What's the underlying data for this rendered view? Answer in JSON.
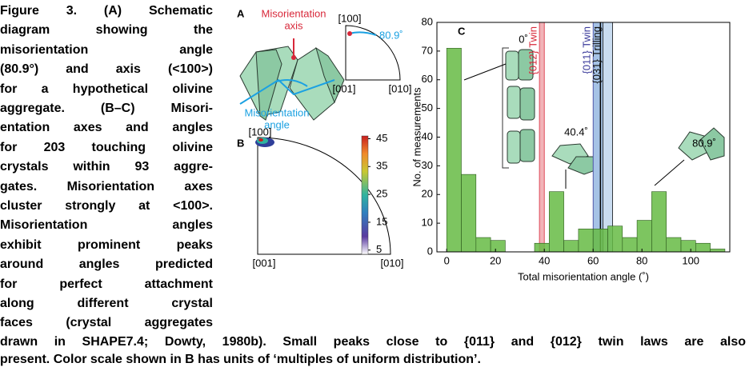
{
  "caption": {
    "side_lines": [
      "Figure 3. (A) Schematic",
      "diagram showing the",
      "misorientation angle",
      "(80.9°) and axis (<100>)",
      "for a hypothetical olivine",
      "aggregate. (B–C) Misori-",
      "entation axes and angles",
      "for 203 touching olivine",
      "crystals within 93 aggre-",
      "gates. Misorientation axes",
      "cluster strongly at <100>.",
      "Misorientation angles",
      "exhibit prominent peaks",
      "around angles predicted",
      "for perfect attachment",
      "along different crystal",
      "faces (crystal aggregates"
    ],
    "bottom_lines": [
      "drawn in SHAPE7.4; Dowty, 1980b). Small peaks close to {011} and {012} twin laws are also",
      "present. Color scale shown in B has units of ‘multiples of uniform distribution’."
    ]
  },
  "panel_a": {
    "label": "A",
    "axis_label": [
      "Misorientation",
      "axis"
    ],
    "angle_label": [
      "Misorientation",
      "angle"
    ],
    "pole_top": "[100]",
    "pole_left": "[001]",
    "pole_right": "[010]",
    "angle": "80.9˚"
  },
  "panel_b": {
    "label": "B",
    "pole_top": "[100]",
    "pole_left": "[001]",
    "pole_right": "[010]",
    "colorbar": {
      "lim": [
        3.5,
        46
      ],
      "ticks": [
        45,
        35,
        25,
        15,
        5
      ]
    }
  },
  "chart_data": {
    "type": "histogram",
    "label": "C",
    "x_label": "Total misorientation angle (˚)",
    "y_label": "No. of measurements",
    "bins": [
      0,
      6,
      12,
      18,
      24,
      30,
      36,
      42,
      48,
      54,
      60,
      66,
      72,
      78,
      84,
      90,
      96,
      102,
      108,
      114
    ],
    "values": [
      71,
      27,
      5,
      4,
      0,
      0,
      3,
      21,
      4,
      8,
      8,
      9,
      5,
      11,
      21,
      5,
      4,
      3,
      1
    ],
    "color": "#66bb44",
    "xlim": [
      -4,
      116
    ],
    "xticks": [
      0,
      20,
      40,
      60,
      80,
      100
    ],
    "ylim": [
      0,
      80
    ],
    "yticks": [
      0,
      10,
      20,
      30,
      40,
      50,
      60,
      70,
      80
    ],
    "bands": [
      {
        "label": "{012} Twin",
        "range": [
          38,
          40
        ],
        "color": "#f2b3b8",
        "text_color": "#d8283a"
      },
      {
        "label": "{011} Twin",
        "range": [
          60,
          64
        ],
        "color": "#a6c3e6",
        "text_color": "#3a3a9a"
      },
      {
        "label": "{031} Trilling",
        "range": [
          64,
          68
        ],
        "color": "#c9dcf0",
        "text_color": "#111111",
        "line": 63
      }
    ],
    "annotations": [
      "0˚",
      "40.4˚",
      "80.9˚"
    ]
  }
}
